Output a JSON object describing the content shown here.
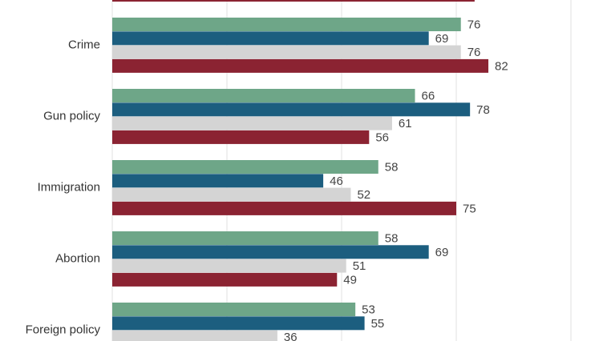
{
  "chart_data": {
    "type": "bar",
    "orientation": "horizontal",
    "categories": [
      "Crime",
      "Gun policy",
      "Immigration",
      "Abortion",
      "Foreign policy"
    ],
    "series": [
      {
        "color": "#6ea688",
        "values": [
          76,
          66,
          58,
          58,
          53
        ]
      },
      {
        "color": "#1c5e7f",
        "values": [
          69,
          78,
          46,
          69,
          55
        ]
      },
      {
        "color": "#d4d4d4",
        "values": [
          76,
          61,
          52,
          51,
          36
        ]
      },
      {
        "color": "#8b2332",
        "values": [
          82,
          56,
          75,
          49,
          null
        ]
      }
    ],
    "xlim": [
      0,
      100
    ],
    "grid": true,
    "top_partial_bar": {
      "color": "#8b2332",
      "value": 79
    }
  }
}
